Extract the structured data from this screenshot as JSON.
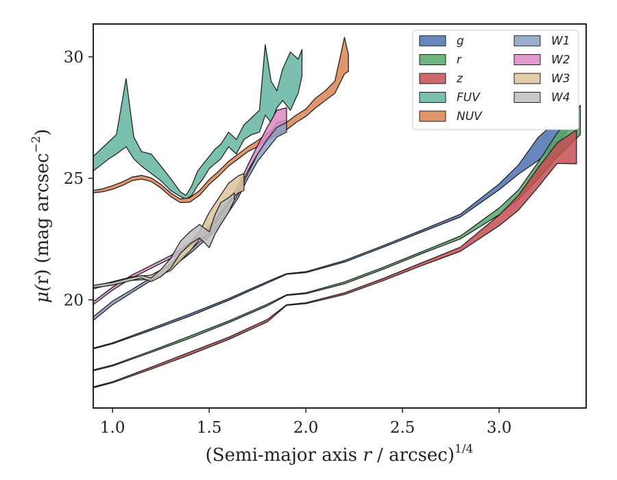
{
  "chart_data": {
    "type": "area",
    "title": "",
    "xlabel_html": [
      "(Semi-major axis ",
      "r",
      " / arcsec)",
      "1/4"
    ],
    "ylabel_html": [
      "μ(",
      "r",
      ") (mag arcsec",
      "−2",
      ")"
    ],
    "xlim": [
      0.9,
      3.45
    ],
    "ylim": [
      31.35,
      15.55
    ],
    "x_ticks": [
      1.0,
      1.5,
      2.0,
      2.5,
      3.0
    ],
    "x_tick_labels": [
      "1.0",
      "1.5",
      "2.0",
      "2.5",
      "3.0"
    ],
    "y_ticks": [
      20,
      25,
      30
    ],
    "y_tick_labels": [
      "20",
      "25",
      "30"
    ],
    "y_inverted": true,
    "grid": false,
    "legend_position": "top-right",
    "legend_columns": 2,
    "series": [
      {
        "name": "g",
        "color": "#4c72b0",
        "x": [
          0.9,
          1.0,
          1.2,
          1.4,
          1.6,
          1.8,
          1.9,
          2.0,
          2.2,
          2.4,
          2.6,
          2.8,
          3.0,
          3.1,
          3.2,
          3.3,
          3.38
        ],
        "lo": [
          17.98,
          18.19,
          18.75,
          19.33,
          19.98,
          20.69,
          21.05,
          21.12,
          21.55,
          22.16,
          22.79,
          23.41,
          24.53,
          25.17,
          25.72,
          26.41,
          27.2
        ],
        "hi": [
          18.02,
          18.23,
          18.82,
          19.42,
          20.05,
          20.75,
          21.08,
          21.16,
          21.62,
          22.23,
          22.87,
          23.53,
          24.77,
          25.55,
          26.67,
          27.38,
          28.3
        ]
      },
      {
        "name": "r",
        "color": "#55a868",
        "x": [
          0.9,
          1.0,
          1.2,
          1.4,
          1.6,
          1.8,
          1.9,
          2.0,
          2.2,
          2.4,
          2.6,
          2.8,
          3.0,
          3.1,
          3.2,
          3.3,
          3.42
        ],
        "lo": [
          17.08,
          17.28,
          17.84,
          18.42,
          19.06,
          19.75,
          20.18,
          20.25,
          20.66,
          21.26,
          21.9,
          22.51,
          23.5,
          24.14,
          24.96,
          25.89,
          26.8
        ],
        "hi": [
          17.12,
          17.32,
          17.9,
          18.51,
          19.13,
          19.82,
          20.21,
          20.29,
          20.74,
          21.34,
          21.98,
          22.63,
          23.78,
          24.52,
          25.64,
          26.86,
          28.0
        ]
      },
      {
        "name": "z",
        "color": "#c44e52",
        "x": [
          0.9,
          1.0,
          1.2,
          1.4,
          1.6,
          1.8,
          1.9,
          2.0,
          2.2,
          2.4,
          2.6,
          2.8,
          3.0,
          3.1,
          3.2,
          3.3,
          3.4
        ],
        "lo": [
          16.38,
          16.59,
          17.15,
          17.74,
          18.37,
          19.09,
          19.77,
          19.84,
          20.22,
          20.79,
          21.41,
          22.0,
          23.05,
          23.69,
          24.62,
          25.61,
          25.6
        ],
        "hi": [
          16.42,
          16.63,
          17.23,
          17.85,
          18.46,
          19.19,
          19.8,
          19.88,
          20.29,
          20.88,
          21.53,
          22.17,
          23.49,
          24.3,
          25.42,
          26.46,
          27.0
        ]
      },
      {
        "name": "FUV",
        "color": "#64b5a0",
        "x": [
          0.9,
          0.98,
          1.02,
          1.07,
          1.11,
          1.15,
          1.2,
          1.25,
          1.3,
          1.35,
          1.38,
          1.41,
          1.44,
          1.47,
          1.5,
          1.53,
          1.56,
          1.6,
          1.64,
          1.68,
          1.72,
          1.76,
          1.79,
          1.82,
          1.85,
          1.88,
          1.92,
          1.96,
          1.98
        ],
        "lo": [
          25.3,
          25.8,
          26.0,
          26.3,
          25.8,
          25.5,
          25.2,
          24.9,
          24.5,
          24.25,
          24.15,
          24.3,
          24.7,
          25.0,
          25.4,
          25.6,
          25.8,
          26.3,
          26.0,
          26.6,
          26.8,
          26.9,
          27.6,
          27.3,
          27.9,
          28.2,
          27.8,
          28.5,
          29.2
        ],
        "hi": [
          25.9,
          26.5,
          26.8,
          29.1,
          26.7,
          26.1,
          26.0,
          25.5,
          25.0,
          24.45,
          24.3,
          24.7,
          25.3,
          25.6,
          25.9,
          26.2,
          26.4,
          26.9,
          26.6,
          27.2,
          27.5,
          27.8,
          30.5,
          29.0,
          28.6,
          29.5,
          30.2,
          29.9,
          30.3
        ]
      },
      {
        "name": "NUV",
        "color": "#dd8452",
        "x": [
          0.9,
          0.95,
          1.0,
          1.05,
          1.1,
          1.15,
          1.2,
          1.25,
          1.3,
          1.35,
          1.4,
          1.45,
          1.5,
          1.55,
          1.6,
          1.65,
          1.7,
          1.75,
          1.8,
          1.85,
          1.9,
          1.95,
          2.0,
          2.05,
          2.1,
          2.15,
          2.2,
          2.22
        ],
        "lo": [
          24.4,
          24.45,
          24.55,
          24.7,
          24.9,
          24.97,
          24.87,
          24.6,
          24.25,
          24.0,
          24.02,
          24.3,
          24.75,
          25.1,
          25.5,
          25.8,
          26.1,
          26.3,
          26.6,
          26.8,
          27.0,
          27.3,
          27.55,
          27.9,
          28.2,
          28.5,
          29.3,
          29.4
        ],
        "hi": [
          24.5,
          24.57,
          24.7,
          24.85,
          25.05,
          25.12,
          25.02,
          24.75,
          24.4,
          24.15,
          24.2,
          24.5,
          24.95,
          25.3,
          25.7,
          26.0,
          26.3,
          26.55,
          26.85,
          27.1,
          27.3,
          27.6,
          27.85,
          28.3,
          28.6,
          29.0,
          30.8,
          30.1
        ]
      },
      {
        "name": "W1",
        "color": "#8c9fc4",
        "x": [
          0.9,
          1.0,
          1.1,
          1.2,
          1.3,
          1.4,
          1.5,
          1.55,
          1.6,
          1.65,
          1.7,
          1.75,
          1.8,
          1.85,
          1.9
        ],
        "lo": [
          19.15,
          19.8,
          20.3,
          20.8,
          21.3,
          21.9,
          22.6,
          23.0,
          23.6,
          24.2,
          25.0,
          25.7,
          26.2,
          26.7,
          26.9
        ],
        "hi": [
          19.3,
          19.95,
          20.42,
          20.92,
          21.42,
          22.03,
          22.75,
          23.15,
          23.75,
          24.35,
          25.2,
          26.0,
          26.6,
          27.3,
          27.4
        ]
      },
      {
        "name": "W2",
        "color": "#da8bc3",
        "x": [
          0.9,
          1.0,
          1.1,
          1.2,
          1.3,
          1.4,
          1.5,
          1.55,
          1.6,
          1.65,
          1.7,
          1.75,
          1.8,
          1.85,
          1.9
        ],
        "lo": [
          19.8,
          20.4,
          20.9,
          21.3,
          21.7,
          22.2,
          22.9,
          23.3,
          23.9,
          24.5,
          25.3,
          26.0,
          26.6,
          27.1,
          27.3
        ],
        "hi": [
          19.92,
          20.52,
          21.02,
          21.42,
          21.82,
          22.33,
          23.05,
          23.45,
          24.05,
          24.7,
          25.55,
          26.35,
          27.1,
          27.8,
          27.9
        ]
      },
      {
        "name": "W3",
        "color": "#dcc39e",
        "x": [
          0.9,
          1.0,
          1.1,
          1.2,
          1.3,
          1.35,
          1.4,
          1.45,
          1.5,
          1.55,
          1.6,
          1.65,
          1.68
        ],
        "lo": [
          20.45,
          20.65,
          20.8,
          20.85,
          21.2,
          21.6,
          22.0,
          22.5,
          22.7,
          23.5,
          24.0,
          24.4,
          24.5
        ],
        "hi": [
          20.55,
          20.75,
          20.95,
          21.02,
          21.45,
          21.9,
          22.3,
          22.8,
          23.6,
          24.2,
          24.8,
          25.1,
          25.2
        ]
      },
      {
        "name": "W4",
        "color": "#bdbdbd",
        "x": [
          0.9,
          1.0,
          1.1,
          1.15,
          1.2,
          1.25,
          1.3,
          1.35,
          1.4,
          1.45,
          1.5,
          1.53,
          1.56,
          1.6,
          1.63
        ],
        "lo": [
          20.5,
          20.6,
          20.8,
          20.9,
          20.75,
          20.95,
          21.3,
          21.9,
          22.3,
          22.55,
          22.15,
          22.7,
          23.1,
          23.6,
          24.1
        ],
        "hi": [
          20.6,
          20.72,
          20.92,
          21.0,
          20.9,
          21.25,
          21.7,
          22.4,
          22.8,
          23.1,
          22.8,
          23.5,
          24.0,
          24.2,
          24.4
        ]
      }
    ]
  }
}
